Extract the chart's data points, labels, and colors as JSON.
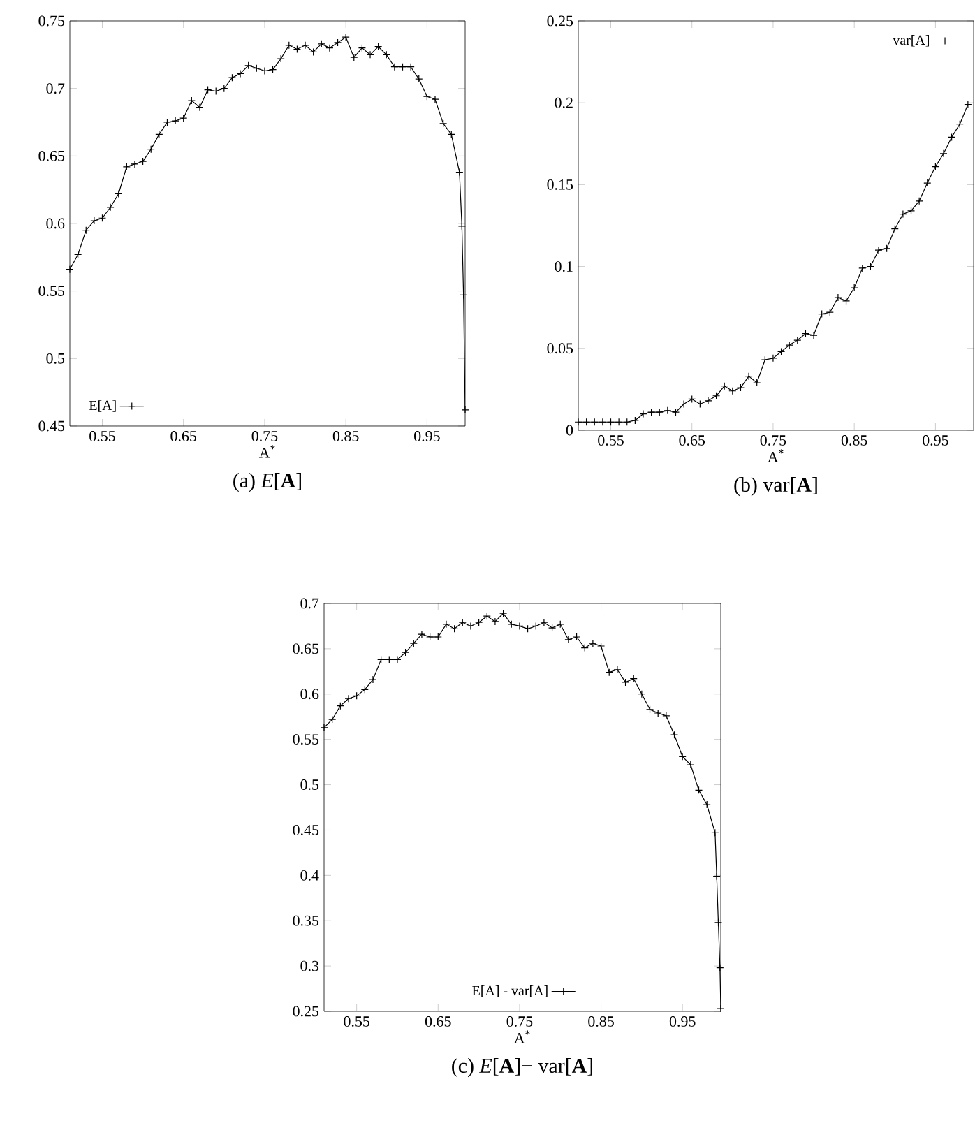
{
  "chart_data": [
    {
      "type": "line",
      "title": "(a) *E*[**A**]",
      "xlabel": "A$^{*}$",
      "xlim": [
        0.51,
        0.997
      ],
      "ylim": [
        0.45,
        0.75
      ],
      "xticks": [
        0.55,
        0.65,
        0.75,
        0.85,
        0.95
      ],
      "yticks": [
        0.45,
        0.5,
        0.55,
        0.6,
        0.65,
        0.7,
        0.75
      ],
      "legend": "bottom left",
      "marker": "cross",
      "line_style": "solid",
      "x": [
        0.51,
        0.52,
        0.53,
        0.54,
        0.55,
        0.56,
        0.57,
        0.58,
        0.59,
        0.6,
        0.61,
        0.62,
        0.63,
        0.64,
        0.65,
        0.66,
        0.67,
        0.68,
        0.69,
        0.7,
        0.71,
        0.72,
        0.73,
        0.74,
        0.75,
        0.76,
        0.77,
        0.78,
        0.79,
        0.8,
        0.81,
        0.82,
        0.83,
        0.84,
        0.85,
        0.86,
        0.87,
        0.88,
        0.89,
        0.9,
        0.91,
        0.92,
        0.93,
        0.94,
        0.95,
        0.96,
        0.97,
        0.98,
        0.99,
        0.993,
        0.995,
        0.997
      ],
      "series": [
        {
          "name": "E[A]",
          "color": "#000000",
          "values": [
            0.566,
            0.577,
            0.595,
            0.602,
            0.604,
            0.612,
            0.622,
            0.642,
            0.644,
            0.646,
            0.655,
            0.666,
            0.675,
            0.676,
            0.678,
            0.691,
            0.686,
            0.699,
            0.698,
            0.7,
            0.708,
            0.711,
            0.717,
            0.715,
            0.713,
            0.714,
            0.722,
            0.732,
            0.729,
            0.732,
            0.727,
            0.733,
            0.73,
            0.734,
            0.738,
            0.723,
            0.73,
            0.725,
            0.731,
            0.725,
            0.716,
            0.716,
            0.716,
            0.707,
            0.694,
            0.692,
            0.674,
            0.666,
            0.638,
            0.598,
            0.547,
            0.462
          ]
        }
      ]
    },
    {
      "type": "line",
      "title": "(b) var[**A**]",
      "xlabel": "A$^{*}$",
      "xlim": [
        0.51,
        0.997
      ],
      "ylim": [
        0,
        0.25
      ],
      "xticks": [
        0.55,
        0.65,
        0.75,
        0.85,
        0.95
      ],
      "yticks": [
        0,
        0.05,
        0.1,
        0.15,
        0.2,
        0.25
      ],
      "legend": "top right",
      "marker": "cross",
      "line_style": "solid",
      "x": [
        0.51,
        0.52,
        0.53,
        0.54,
        0.55,
        0.56,
        0.57,
        0.58,
        0.59,
        0.6,
        0.61,
        0.62,
        0.63,
        0.64,
        0.65,
        0.66,
        0.67,
        0.68,
        0.69,
        0.7,
        0.71,
        0.72,
        0.73,
        0.74,
        0.75,
        0.76,
        0.77,
        0.78,
        0.79,
        0.8,
        0.81,
        0.82,
        0.83,
        0.84,
        0.85,
        0.86,
        0.87,
        0.88,
        0.89,
        0.9,
        0.91,
        0.92,
        0.93,
        0.94,
        0.95,
        0.96,
        0.97,
        0.98,
        0.99
      ],
      "series": [
        {
          "name": "var[A]",
          "color": "#000000",
          "values": [
            0.005,
            0.005,
            0.005,
            0.005,
            0.005,
            0.005,
            0.005,
            0.006,
            0.01,
            0.011,
            0.011,
            0.012,
            0.011,
            0.016,
            0.019,
            0.016,
            0.018,
            0.021,
            0.027,
            0.024,
            0.026,
            0.033,
            0.029,
            0.043,
            0.044,
            0.048,
            0.052,
            0.055,
            0.059,
            0.058,
            0.071,
            0.072,
            0.081,
            0.079,
            0.087,
            0.099,
            0.1,
            0.11,
            0.111,
            0.123,
            0.132,
            0.134,
            0.14,
            0.151,
            0.161,
            0.169,
            0.179,
            0.187,
            0.199
          ]
        }
      ]
    },
    {
      "type": "line",
      "title": "(c) *E*[**A**]− var[**A**]",
      "xlabel": "A$^{*}$",
      "xlim": [
        0.51,
        0.997
      ],
      "ylim": [
        0.25,
        0.7
      ],
      "xticks": [
        0.55,
        0.65,
        0.75,
        0.85,
        0.95
      ],
      "yticks": [
        0.25,
        0.3,
        0.35,
        0.4,
        0.45,
        0.5,
        0.55,
        0.6,
        0.65,
        0.7
      ],
      "legend": "bottom",
      "marker": "cross",
      "line_style": "solid",
      "x": [
        0.51,
        0.52,
        0.53,
        0.54,
        0.55,
        0.56,
        0.57,
        0.58,
        0.59,
        0.6,
        0.61,
        0.62,
        0.63,
        0.64,
        0.65,
        0.66,
        0.67,
        0.68,
        0.69,
        0.7,
        0.71,
        0.72,
        0.73,
        0.74,
        0.75,
        0.76,
        0.77,
        0.78,
        0.79,
        0.8,
        0.81,
        0.82,
        0.83,
        0.84,
        0.85,
        0.86,
        0.87,
        0.88,
        0.89,
        0.9,
        0.91,
        0.92,
        0.93,
        0.94,
        0.95,
        0.96,
        0.97,
        0.98,
        0.99,
        0.992,
        0.994,
        0.996,
        0.997
      ],
      "series": [
        {
          "name": "E[A] - var[A]",
          "color": "#000000",
          "values": [
            0.563,
            0.572,
            0.587,
            0.595,
            0.598,
            0.605,
            0.616,
            0.638,
            0.638,
            0.638,
            0.646,
            0.656,
            0.666,
            0.663,
            0.663,
            0.677,
            0.672,
            0.679,
            0.675,
            0.679,
            0.686,
            0.68,
            0.689,
            0.677,
            0.675,
            0.672,
            0.675,
            0.679,
            0.673,
            0.677,
            0.66,
            0.663,
            0.651,
            0.656,
            0.653,
            0.624,
            0.627,
            0.613,
            0.617,
            0.6,
            0.583,
            0.579,
            0.576,
            0.555,
            0.531,
            0.522,
            0.494,
            0.478,
            0.447,
            0.399,
            0.348,
            0.298,
            0.253
          ]
        }
      ]
    }
  ]
}
